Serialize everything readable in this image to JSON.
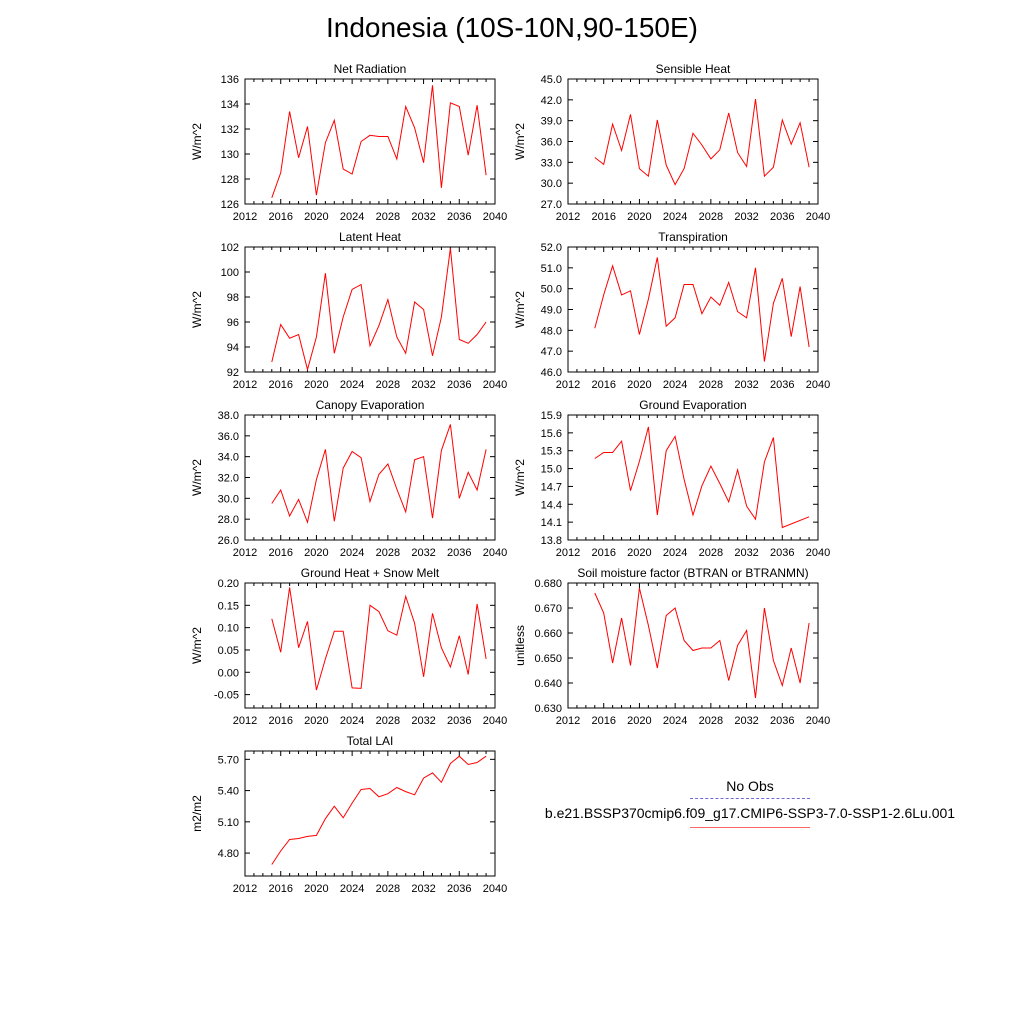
{
  "title": "Indonesia (10S-10N,90-150E)",
  "legend": {
    "obs_label": "No Obs",
    "model_label": "b.e21.BSSP370cmip6.f09_g17.CMIP6-SSP3-7.0-SSP1-2.6Lu.001",
    "obs_color": "#6b6bd6",
    "model_color": "#ff0000"
  },
  "chart_data": [
    {
      "type": "line",
      "title": "Net Radiation",
      "ylabel": "W/m^2",
      "xlim": [
        2012,
        2040
      ],
      "ylim": [
        126,
        136
      ],
      "xticks": [
        2012,
        2016,
        2020,
        2024,
        2028,
        2032,
        2036,
        2040
      ],
      "yticks": [
        "126",
        "128",
        "130",
        "132",
        "134",
        "136"
      ],
      "x": [
        2015,
        2016,
        2017,
        2018,
        2019,
        2020,
        2021,
        2022,
        2023,
        2024,
        2025,
        2026,
        2027,
        2028,
        2029,
        2030,
        2031,
        2032,
        2033,
        2034,
        2035,
        2036,
        2037,
        2038,
        2039
      ],
      "series": [
        {
          "values": [
            126.5,
            128.5,
            133.4,
            129.7,
            132.2,
            126.7,
            130.9,
            132.7,
            128.8,
            128.4,
            131.0,
            131.5,
            131.4,
            131.4,
            129.6,
            133.8,
            132.1,
            129.3,
            135.5,
            127.3,
            134.1,
            133.8,
            129.9,
            133.9,
            128.3
          ]
        }
      ]
    },
    {
      "type": "line",
      "title": "Sensible Heat",
      "ylabel": "W/m^2",
      "xlim": [
        2012,
        2040
      ],
      "ylim": [
        27.0,
        45.0
      ],
      "xticks": [
        2012,
        2016,
        2020,
        2024,
        2028,
        2032,
        2036,
        2040
      ],
      "yticks": [
        "27.0",
        "30.0",
        "33.0",
        "36.0",
        "39.0",
        "42.0",
        "45.0"
      ],
      "x": [
        2015,
        2016,
        2017,
        2018,
        2019,
        2020,
        2021,
        2022,
        2023,
        2024,
        2025,
        2026,
        2027,
        2028,
        2029,
        2030,
        2031,
        2032,
        2033,
        2034,
        2035,
        2036,
        2037,
        2038,
        2039
      ],
      "series": [
        {
          "values": [
            33.7,
            32.7,
            38.5,
            34.7,
            39.9,
            32.1,
            31.0,
            39.1,
            32.6,
            29.8,
            32.1,
            37.2,
            35.5,
            33.5,
            34.8,
            40.1,
            34.4,
            32.4,
            42.1,
            31.0,
            32.3,
            39.1,
            35.6,
            38.7,
            32.3
          ]
        }
      ]
    },
    {
      "type": "line",
      "title": "Latent Heat",
      "ylabel": "W/m^2",
      "xlim": [
        2012,
        2040
      ],
      "ylim": [
        92,
        102
      ],
      "xticks": [
        2012,
        2016,
        2020,
        2024,
        2028,
        2032,
        2036,
        2040
      ],
      "yticks": [
        "92",
        "94",
        "96",
        "98",
        "100",
        "102"
      ],
      "x": [
        2015,
        2016,
        2017,
        2018,
        2019,
        2020,
        2021,
        2022,
        2023,
        2024,
        2025,
        2026,
        2027,
        2028,
        2029,
        2030,
        2031,
        2032,
        2033,
        2034,
        2035,
        2036,
        2037,
        2038,
        2039
      ],
      "series": [
        {
          "values": [
            92.8,
            95.8,
            94.7,
            95.0,
            92.2,
            94.8,
            99.9,
            93.5,
            96.4,
            98.6,
            99.0,
            94.1,
            95.7,
            97.8,
            94.8,
            93.5,
            97.6,
            97.0,
            93.3,
            96.4,
            101.9,
            94.6,
            94.3,
            95.0,
            96.0
          ]
        }
      ]
    },
    {
      "type": "line",
      "title": "Transpiration",
      "ylabel": "W/m^2",
      "xlim": [
        2012,
        2040
      ],
      "ylim": [
        46.0,
        52.0
      ],
      "xticks": [
        2012,
        2016,
        2020,
        2024,
        2028,
        2032,
        2036,
        2040
      ],
      "yticks": [
        "46.0",
        "47.0",
        "48.0",
        "49.0",
        "50.0",
        "51.0",
        "52.0"
      ],
      "x": [
        2015,
        2016,
        2017,
        2018,
        2019,
        2020,
        2021,
        2022,
        2023,
        2024,
        2025,
        2026,
        2027,
        2028,
        2029,
        2030,
        2031,
        2032,
        2033,
        2034,
        2035,
        2036,
        2037,
        2038,
        2039
      ],
      "series": [
        {
          "values": [
            48.1,
            49.7,
            51.1,
            49.7,
            49.9,
            47.8,
            49.5,
            51.5,
            48.2,
            48.6,
            50.2,
            50.2,
            48.8,
            49.6,
            49.2,
            50.3,
            48.9,
            48.6,
            51.0,
            46.5,
            49.3,
            50.5,
            47.7,
            50.1,
            47.2
          ]
        }
      ]
    },
    {
      "type": "line",
      "title": "Canopy Evaporation",
      "ylabel": "W/m^2",
      "xlim": [
        2012,
        2040
      ],
      "ylim": [
        26.0,
        38.0
      ],
      "xticks": [
        2012,
        2016,
        2020,
        2024,
        2028,
        2032,
        2036,
        2040
      ],
      "yticks": [
        "26.0",
        "28.0",
        "30.0",
        "32.0",
        "34.0",
        "36.0",
        "38.0"
      ],
      "x": [
        2015,
        2016,
        2017,
        2018,
        2019,
        2020,
        2021,
        2022,
        2023,
        2024,
        2025,
        2026,
        2027,
        2028,
        2029,
        2030,
        2031,
        2032,
        2033,
        2034,
        2035,
        2036,
        2037,
        2038,
        2039
      ],
      "series": [
        {
          "values": [
            29.5,
            30.8,
            28.3,
            29.9,
            27.7,
            31.8,
            34.7,
            27.8,
            32.9,
            34.5,
            33.9,
            29.7,
            32.3,
            33.3,
            30.9,
            28.7,
            33.7,
            34.0,
            28.1,
            34.6,
            37.1,
            30.0,
            32.5,
            30.8,
            34.7
          ]
        }
      ]
    },
    {
      "type": "line",
      "title": "Ground Evaporation",
      "ylabel": "W/m^2",
      "xlim": [
        2012,
        2040
      ],
      "ylim": [
        13.8,
        15.9
      ],
      "xticks": [
        2012,
        2016,
        2020,
        2024,
        2028,
        2032,
        2036,
        2040
      ],
      "yticks": [
        "13.8",
        "14.1",
        "14.4",
        "14.7",
        "15.0",
        "15.3",
        "15.6",
        "15.9"
      ],
      "x": [
        2015,
        2016,
        2017,
        2018,
        2019,
        2020,
        2021,
        2022,
        2023,
        2024,
        2025,
        2026,
        2027,
        2028,
        2029,
        2030,
        2031,
        2032,
        2033,
        2034,
        2035,
        2036,
        2039
      ],
      "series": [
        {
          "values": [
            15.17,
            15.27,
            15.27,
            15.46,
            14.63,
            15.12,
            15.7,
            14.22,
            15.3,
            15.54,
            14.82,
            14.22,
            14.71,
            15.04,
            14.75,
            14.44,
            14.98,
            14.37,
            14.15,
            15.11,
            15.52,
            14.01,
            14.19
          ]
        }
      ]
    },
    {
      "type": "line",
      "title": "Ground Heat + Snow Melt",
      "ylabel": "W/m^2",
      "xlim": [
        2012,
        2040
      ],
      "ylim": [
        -0.08,
        0.2
      ],
      "xticks": [
        2012,
        2016,
        2020,
        2024,
        2028,
        2032,
        2036,
        2040
      ],
      "yticks": [
        "-0.05",
        "0.00",
        "0.05",
        "0.10",
        "0.15",
        "0.20"
      ],
      "x": [
        2015,
        2016,
        2017,
        2018,
        2019,
        2020,
        2021,
        2022,
        2023,
        2024,
        2025,
        2026,
        2027,
        2028,
        2029,
        2030,
        2031,
        2032,
        2033,
        2034,
        2035,
        2036,
        2037,
        2038,
        2039
      ],
      "series": [
        {
          "values": [
            0.12,
            0.045,
            0.19,
            0.055,
            0.114,
            -0.04,
            0.03,
            0.092,
            0.092,
            -0.035,
            -0.036,
            0.15,
            0.136,
            0.093,
            0.083,
            0.17,
            0.11,
            -0.01,
            0.132,
            0.055,
            0.012,
            0.082,
            -0.005,
            0.153,
            0.03
          ]
        }
      ]
    },
    {
      "type": "line",
      "title": "Soil moisture factor (BTRAN or BTRANMN)",
      "ylabel": "unitless",
      "xlim": [
        2012,
        2040
      ],
      "ylim": [
        0.63,
        0.68
      ],
      "xticks": [
        2012,
        2016,
        2020,
        2024,
        2028,
        2032,
        2036,
        2040
      ],
      "yticks": [
        "0.630",
        "0.640",
        "0.650",
        "0.660",
        "0.670",
        "0.680"
      ],
      "x": [
        2015,
        2016,
        2017,
        2018,
        2019,
        2020,
        2021,
        2022,
        2023,
        2024,
        2025,
        2026,
        2027,
        2028,
        2029,
        2030,
        2031,
        2032,
        2033,
        2034,
        2035,
        2036,
        2037,
        2038,
        2039
      ],
      "series": [
        {
          "values": [
            0.676,
            0.668,
            0.648,
            0.666,
            0.647,
            0.678,
            0.663,
            0.646,
            0.667,
            0.67,
            0.657,
            0.653,
            0.654,
            0.654,
            0.657,
            0.641,
            0.655,
            0.661,
            0.634,
            0.67,
            0.649,
            0.639,
            0.654,
            0.64,
            0.664
          ]
        }
      ]
    },
    {
      "type": "line",
      "title": "Total LAI",
      "ylabel": "m2/m2",
      "xlim": [
        2012,
        2040
      ],
      "ylim": [
        4.58,
        5.78
      ],
      "xticks": [
        2012,
        2016,
        2020,
        2024,
        2028,
        2032,
        2036,
        2040
      ],
      "yticks": [
        "4.80",
        "5.10",
        "5.40",
        "5.70"
      ],
      "x": [
        2015,
        2016,
        2017,
        2018,
        2019,
        2020,
        2021,
        2022,
        2023,
        2024,
        2025,
        2026,
        2027,
        2028,
        2029,
        2030,
        2031,
        2032,
        2033,
        2034,
        2035,
        2036,
        2037,
        2038,
        2039
      ],
      "series": [
        {
          "values": [
            4.69,
            4.82,
            4.93,
            4.94,
            4.96,
            4.97,
            5.13,
            5.25,
            5.14,
            5.28,
            5.41,
            5.42,
            5.34,
            5.37,
            5.43,
            5.39,
            5.36,
            5.52,
            5.57,
            5.48,
            5.66,
            5.73,
            5.65,
            5.67,
            5.73
          ]
        }
      ]
    }
  ]
}
